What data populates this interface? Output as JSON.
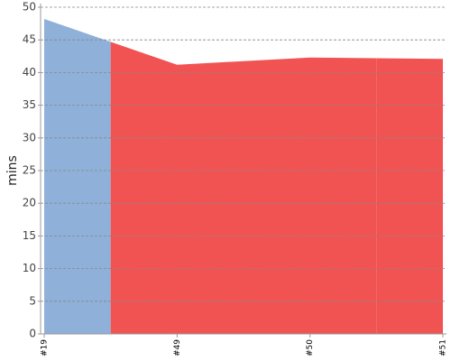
{
  "chart_data": {
    "type": "area",
    "y_label": "mins",
    "categories": [
      "#19",
      "#49",
      "#50",
      "#51"
    ],
    "values": [
      48.2,
      41.2,
      42.3,
      42.1
    ],
    "colors": [
      "#8fb0d9",
      "#f15353",
      "#f15353",
      "#f15353"
    ],
    "ylim": [
      0,
      50
    ],
    "yticks": [
      0,
      5,
      10,
      15,
      20,
      25,
      30,
      35,
      40,
      45,
      50
    ],
    "grid": true
  }
}
